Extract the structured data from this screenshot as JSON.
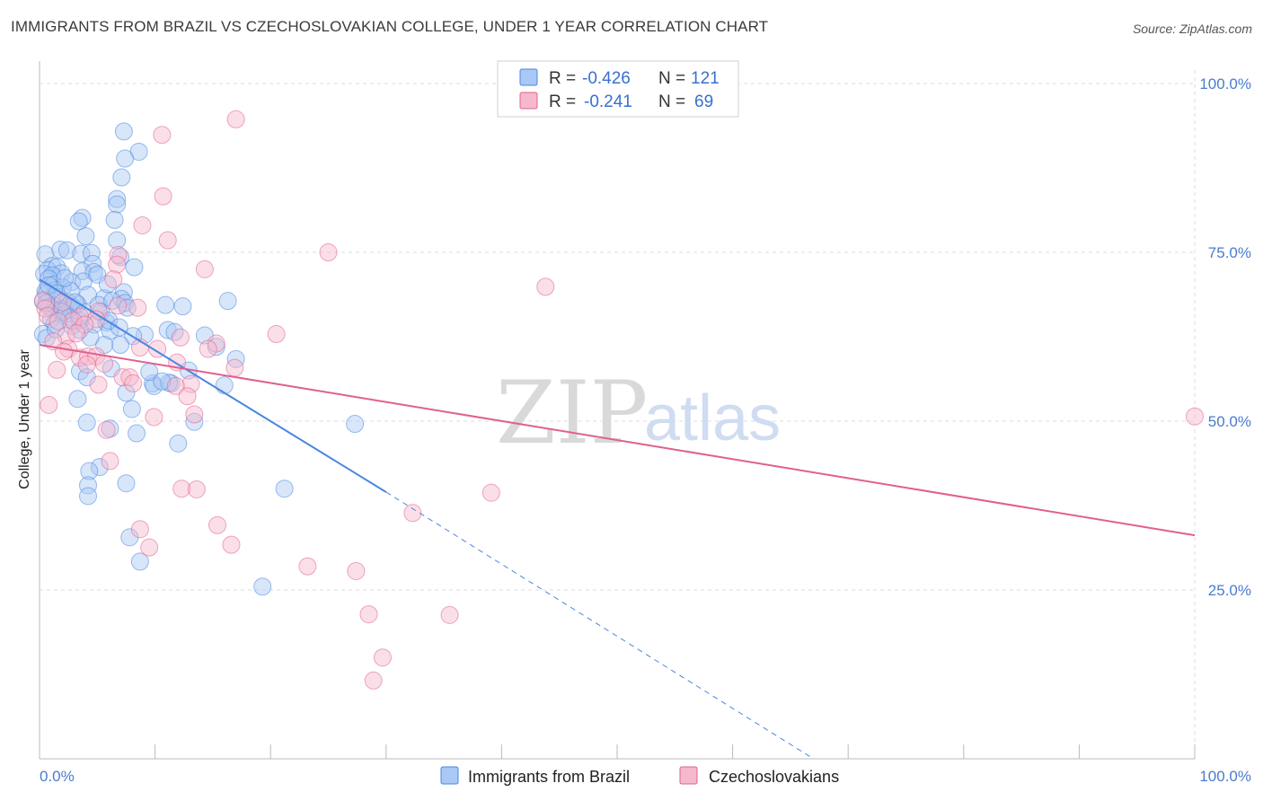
{
  "title": "IMMIGRANTS FROM BRAZIL VS CZECHOSLOVAKIAN COLLEGE, UNDER 1 YEAR CORRELATION CHART",
  "source": "Source: ZipAtlas.com",
  "watermark": {
    "zip": "ZIP",
    "atlas": "atlas"
  },
  "legend": {
    "rows": [
      {
        "r_label": "R =",
        "r_value": "-0.426",
        "n_label": "N =",
        "n_value": "121",
        "color": "#a9c8f5"
      },
      {
        "r_label": "R =",
        "r_value": "-0.241",
        "n_label": "N =",
        "n_value": "69",
        "color": "#f6b9cc"
      }
    ]
  },
  "bottom_legend": [
    {
      "label": "Immigrants from Brazil",
      "color": "#a9c8f5"
    },
    {
      "label": "Czechoslovakians",
      "color": "#f6b9cc"
    }
  ],
  "chart_data": {
    "type": "scatter",
    "title": "IMMIGRANTS FROM BRAZIL VS CZECHOSLOVAKIAN COLLEGE, UNDER 1 YEAR CORRELATION CHART",
    "xlabel": "",
    "ylabel": "College, Under 1 year",
    "xlim": [
      0,
      100
    ],
    "ylim": [
      0,
      102
    ],
    "x_tick_labels": [
      {
        "value": 0,
        "label": "0.0%"
      },
      {
        "value": 100,
        "label": "100.0%"
      }
    ],
    "y_tick_labels": [
      {
        "value": 25,
        "label": "25.0%"
      },
      {
        "value": 50,
        "label": "50.0%"
      },
      {
        "value": 75,
        "label": "75.0%"
      },
      {
        "value": 100,
        "label": "100.0%"
      }
    ],
    "grid": true,
    "legend_position": "top-center",
    "series": [
      {
        "name": "Immigrants from Brazil",
        "color": "#4a86e0",
        "fill": "#a9c8f5",
        "trend": {
          "x0": 0,
          "y0": 71.0,
          "x1": 30,
          "y1": 39.5,
          "dash_to_x": 67,
          "dash_to_y": 0
        },
        "points": [
          [
            7.3,
            92.9
          ],
          [
            8.6,
            89.9
          ],
          [
            7.4,
            88.9
          ],
          [
            7.1,
            86.1
          ],
          [
            6.7,
            82.9
          ],
          [
            6.7,
            82.1
          ],
          [
            3.7,
            80.1
          ],
          [
            3.4,
            79.6
          ],
          [
            6.5,
            79.8
          ],
          [
            4.0,
            77.4
          ],
          [
            6.7,
            76.8
          ],
          [
            0.5,
            74.7
          ],
          [
            1.8,
            75.4
          ],
          [
            2.4,
            75.3
          ],
          [
            3.6,
            74.8
          ],
          [
            4.5,
            74.9
          ],
          [
            7.0,
            74.3
          ],
          [
            4.6,
            73.3
          ],
          [
            1.1,
            73.0
          ],
          [
            0.7,
            72.4
          ],
          [
            1.5,
            72.8
          ],
          [
            8.2,
            72.8
          ],
          [
            3.7,
            72.2
          ],
          [
            1.9,
            71.9
          ],
          [
            4.7,
            72.1
          ],
          [
            0.4,
            71.8
          ],
          [
            1.1,
            71.6
          ],
          [
            0.8,
            71.1
          ],
          [
            2.8,
            70.6
          ],
          [
            3.8,
            70.7
          ],
          [
            5.0,
            71.7
          ],
          [
            1.2,
            70.2
          ],
          [
            2.0,
            69.8
          ],
          [
            1.4,
            69.4
          ],
          [
            0.5,
            69.2
          ],
          [
            0.6,
            68.9
          ],
          [
            7.3,
            69.1
          ],
          [
            4.2,
            68.7
          ],
          [
            1.6,
            68.4
          ],
          [
            5.6,
            68.2
          ],
          [
            7.1,
            68.1
          ],
          [
            0.3,
            67.7
          ],
          [
            2.4,
            67.7
          ],
          [
            3.3,
            67.3
          ],
          [
            1.3,
            67.1
          ],
          [
            2.5,
            67.0
          ],
          [
            1.9,
            66.6
          ],
          [
            2.9,
            66.9
          ],
          [
            5.1,
            67.2
          ],
          [
            6.3,
            67.8
          ],
          [
            7.4,
            67.5
          ],
          [
            10.9,
            67.2
          ],
          [
            12.4,
            67.0
          ],
          [
            16.3,
            67.8
          ],
          [
            1.7,
            66.3
          ],
          [
            2.3,
            65.9
          ],
          [
            2.6,
            65.4
          ],
          [
            1.0,
            65.1
          ],
          [
            3.5,
            64.9
          ],
          [
            1.3,
            64.4
          ],
          [
            7.6,
            66.8
          ],
          [
            4.7,
            64.3
          ],
          [
            2.8,
            64.1
          ],
          [
            5.8,
            64.6
          ],
          [
            3.5,
            63.5
          ],
          [
            6.1,
            63.4
          ],
          [
            11.1,
            63.5
          ],
          [
            11.7,
            63.2
          ],
          [
            9.1,
            62.8
          ],
          [
            8.1,
            62.6
          ],
          [
            14.3,
            62.7
          ],
          [
            0.3,
            62.9
          ],
          [
            0.6,
            62.3
          ],
          [
            7.0,
            61.3
          ],
          [
            5.6,
            61.3
          ],
          [
            15.3,
            61.0
          ],
          [
            17.0,
            59.2
          ],
          [
            6.2,
            57.8
          ],
          [
            12.9,
            57.5
          ],
          [
            3.5,
            57.4
          ],
          [
            4.1,
            56.5
          ],
          [
            9.8,
            55.6
          ],
          [
            11.4,
            55.6
          ],
          [
            9.9,
            55.2
          ],
          [
            11.2,
            55.7
          ],
          [
            16.0,
            55.3
          ],
          [
            7.5,
            54.2
          ],
          [
            3.3,
            53.3
          ],
          [
            8.0,
            51.8
          ],
          [
            4.1,
            49.8
          ],
          [
            13.4,
            49.9
          ],
          [
            27.3,
            49.6
          ],
          [
            6.1,
            48.9
          ],
          [
            8.4,
            48.2
          ],
          [
            12.0,
            46.7
          ],
          [
            5.2,
            43.2
          ],
          [
            4.3,
            42.6
          ],
          [
            4.2,
            40.5
          ],
          [
            7.5,
            40.8
          ],
          [
            21.2,
            40.0
          ],
          [
            4.2,
            38.9
          ],
          [
            7.8,
            32.8
          ],
          [
            8.7,
            29.2
          ],
          [
            19.3,
            25.5
          ],
          [
            2.0,
            66.2
          ],
          [
            0.8,
            70.1
          ],
          [
            1.5,
            68.9
          ],
          [
            2.7,
            69.3
          ],
          [
            3.1,
            67.6
          ],
          [
            5.3,
            66.2
          ],
          [
            6.0,
            64.9
          ],
          [
            0.9,
            66.9
          ],
          [
            1.4,
            63.6
          ],
          [
            0.6,
            67.5
          ],
          [
            2.2,
            71.2
          ],
          [
            3.9,
            66.1
          ],
          [
            4.4,
            62.4
          ],
          [
            5.9,
            70.3
          ],
          [
            6.9,
            63.9
          ],
          [
            9.5,
            57.3
          ],
          [
            10.6,
            55.9
          ]
        ]
      },
      {
        "name": "Czechoslovakians",
        "color": "#e0608e",
        "fill": "#f6b9cc",
        "trend": {
          "x0": 0,
          "y0": 61.3,
          "x1": 100,
          "y1": 33.1
        },
        "points": [
          [
            17.0,
            94.7
          ],
          [
            10.6,
            92.4
          ],
          [
            10.7,
            83.3
          ],
          [
            8.9,
            79.0
          ],
          [
            11.1,
            76.8
          ],
          [
            25.0,
            75.0
          ],
          [
            6.8,
            74.6
          ],
          [
            14.3,
            72.5
          ],
          [
            6.7,
            73.2
          ],
          [
            6.4,
            71.0
          ],
          [
            43.8,
            69.9
          ],
          [
            0.3,
            67.9
          ],
          [
            2.0,
            67.6
          ],
          [
            0.5,
            66.7
          ],
          [
            8.5,
            66.8
          ],
          [
            5.1,
            66.3
          ],
          [
            3.5,
            65.5
          ],
          [
            0.7,
            65.6
          ],
          [
            4.9,
            65.1
          ],
          [
            2.9,
            64.9
          ],
          [
            1.6,
            64.8
          ],
          [
            3.9,
            64.3
          ],
          [
            2.3,
            62.6
          ],
          [
            20.5,
            62.9
          ],
          [
            12.2,
            62.4
          ],
          [
            1.2,
            61.8
          ],
          [
            15.3,
            61.5
          ],
          [
            8.7,
            60.9
          ],
          [
            2.5,
            60.7
          ],
          [
            14.6,
            60.7
          ],
          [
            10.2,
            60.7
          ],
          [
            3.5,
            59.4
          ],
          [
            4.2,
            59.6
          ],
          [
            4.9,
            59.6
          ],
          [
            4.1,
            58.4
          ],
          [
            5.6,
            58.5
          ],
          [
            11.9,
            58.7
          ],
          [
            16.9,
            57.9
          ],
          [
            1.5,
            57.6
          ],
          [
            7.2,
            56.5
          ],
          [
            7.8,
            56.5
          ],
          [
            8.1,
            55.6
          ],
          [
            13.1,
            55.5
          ],
          [
            5.1,
            55.4
          ],
          [
            11.8,
            55.2
          ],
          [
            12.8,
            53.7
          ],
          [
            0.8,
            52.4
          ],
          [
            13.4,
            51.0
          ],
          [
            9.9,
            50.6
          ],
          [
            100.0,
            50.7
          ],
          [
            5.8,
            48.7
          ],
          [
            6.1,
            44.1
          ],
          [
            12.3,
            40.0
          ],
          [
            13.6,
            39.9
          ],
          [
            39.1,
            39.4
          ],
          [
            32.3,
            36.4
          ],
          [
            15.4,
            34.6
          ],
          [
            8.7,
            34.0
          ],
          [
            9.5,
            31.3
          ],
          [
            16.6,
            31.7
          ],
          [
            23.2,
            28.5
          ],
          [
            27.4,
            27.8
          ],
          [
            28.5,
            21.4
          ],
          [
            35.5,
            21.3
          ],
          [
            29.7,
            15.0
          ],
          [
            28.9,
            11.6
          ],
          [
            6.8,
            67.1
          ],
          [
            3.2,
            63.0
          ],
          [
            2.1,
            60.3
          ]
        ]
      }
    ]
  }
}
